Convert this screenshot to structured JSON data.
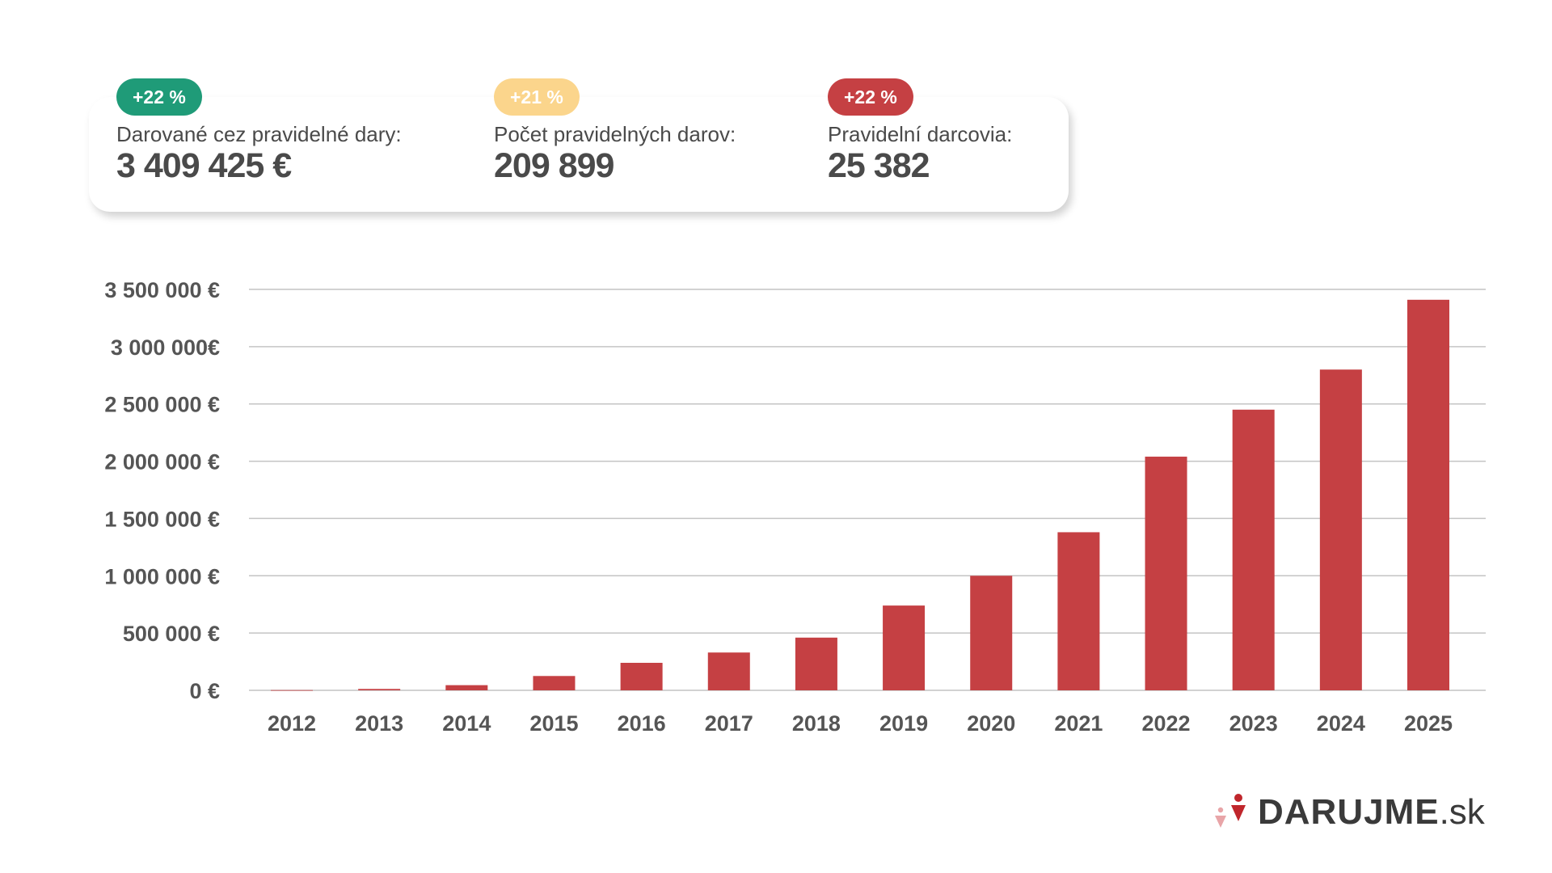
{
  "stats": [
    {
      "badge": "+22 %",
      "badge_color": "#1f9b78",
      "label": "Darované cez pravidelné dary:",
      "value": "3 409 425 €"
    },
    {
      "badge": "+21 %",
      "badge_color": "#fbd58c",
      "label": "Počet pravidelných darov:",
      "value": "209 899"
    },
    {
      "badge": "+22 %",
      "badge_color": "#c54043",
      "label": "Pravidelní darcovia:",
      "value": "25 382"
    }
  ],
  "chart_data": {
    "type": "bar",
    "title": "",
    "xlabel": "",
    "ylabel": "",
    "categories": [
      "2012",
      "2013",
      "2014",
      "2015",
      "2016",
      "2017",
      "2018",
      "2019",
      "2020",
      "2021",
      "2022",
      "2023",
      "2024",
      "2025"
    ],
    "values": [
      2000,
      12000,
      45000,
      125000,
      240000,
      330000,
      460000,
      740000,
      1000000,
      1380000,
      2040000,
      2450000,
      2800000,
      3409425
    ],
    "ylim": [
      0,
      3500000
    ],
    "yticks": [
      0,
      500000,
      1000000,
      1500000,
      2000000,
      2500000,
      3000000,
      3500000
    ],
    "ytick_labels": [
      "0 €",
      "500 000 €",
      "1 000 000 €",
      "1 500 000 €",
      "2 000 000 €",
      "2 500 000 €",
      "3 000 000€",
      "3 500 000 €"
    ],
    "bar_color": "#c54043",
    "grid": true,
    "legend": "none"
  },
  "logo": {
    "name_strong": "DARUJME",
    "name_light": ".sk",
    "primary_color": "#c0262c",
    "secondary_color": "#e8a5a8"
  }
}
